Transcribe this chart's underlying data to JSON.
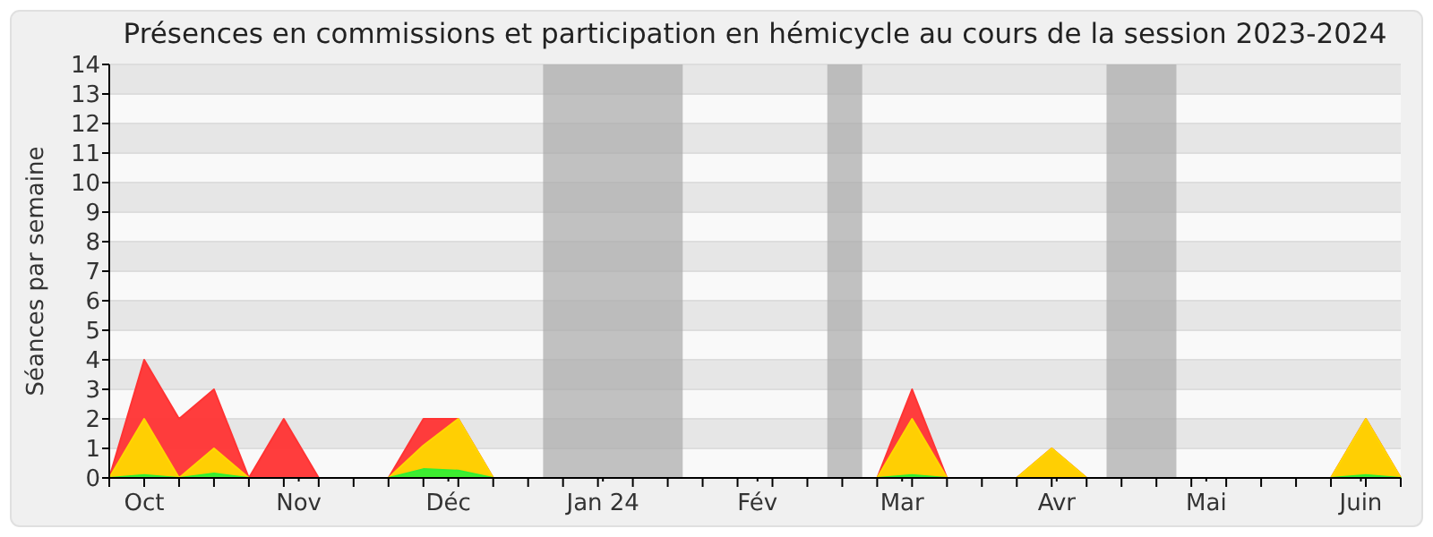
{
  "chart_data": {
    "type": "area",
    "title": "Présences en commissions et participation en hémicycle au cours de la session 2023-2024",
    "ylabel": "Séances par semaine",
    "x": [
      "2023-09-24",
      "2023-10-01",
      "2023-10-08",
      "2023-10-15",
      "2023-10-22",
      "2023-10-29",
      "2023-11-05",
      "2023-11-12",
      "2023-11-19",
      "2023-11-26",
      "2023-12-03",
      "2023-12-10",
      "2023-12-17",
      "2023-12-24",
      "2023-12-31",
      "2024-01-07",
      "2024-01-14",
      "2024-01-21",
      "2024-01-28",
      "2024-02-04",
      "2024-02-11",
      "2024-02-18",
      "2024-02-25",
      "2024-03-03",
      "2024-03-10",
      "2024-03-17",
      "2024-03-24",
      "2024-03-31",
      "2024-04-07",
      "2024-04-14",
      "2024-04-21",
      "2024-04-28",
      "2024-05-05",
      "2024-05-12",
      "2024-05-19",
      "2024-05-26",
      "2024-06-02",
      "2024-06-09"
    ],
    "series": [
      {
        "color": "#ff3333",
        "values": [
          0,
          4,
          2,
          3,
          0,
          2,
          0,
          0,
          0,
          2,
          2,
          0,
          0,
          0,
          0,
          0,
          0,
          0,
          0,
          0,
          0,
          0,
          0,
          3,
          0,
          0,
          0,
          1,
          0,
          0,
          0,
          0,
          0,
          0,
          0,
          0,
          2,
          0
        ]
      },
      {
        "color": "#ffd700",
        "values": [
          0,
          2,
          0,
          1,
          0,
          0,
          0,
          0,
          0,
          1.1,
          2,
          0,
          0,
          0,
          0,
          0,
          0,
          0,
          0,
          0,
          0,
          0,
          0,
          2,
          0,
          0,
          0,
          1,
          0,
          0,
          0,
          0,
          0,
          0,
          0,
          0,
          2,
          0
        ]
      },
      {
        "color": "#33ee33",
        "values": [
          0,
          0.1,
          0,
          0.15,
          0,
          0,
          0,
          0,
          0,
          0.3,
          0.25,
          0,
          0,
          0,
          0,
          0,
          0,
          0,
          0,
          0,
          0,
          0,
          0,
          0.1,
          0,
          0,
          0,
          0,
          0,
          0,
          0,
          0,
          0,
          0,
          0,
          0,
          0.1,
          0
        ]
      }
    ],
    "xlim": [
      "2023-09-24",
      "2024-06-09"
    ],
    "xticks": [
      {
        "value": "2023-10-01",
        "label": "Oct"
      },
      {
        "value": "2023-11-01",
        "label": "Nov"
      },
      {
        "value": "2023-12-01",
        "label": "Déc"
      },
      {
        "value": "2024-01-01",
        "label": "Jan 24"
      },
      {
        "value": "2024-02-01",
        "label": "Fév"
      },
      {
        "value": "2024-03-01",
        "label": "Mar"
      },
      {
        "value": "2024-04-01",
        "label": "Avr"
      },
      {
        "value": "2024-05-01",
        "label": "Mai"
      },
      {
        "value": "2024-06-01",
        "label": "Juin"
      }
    ],
    "ylim": [
      0,
      14
    ],
    "yticks": [
      0,
      1,
      2,
      3,
      4,
      5,
      6,
      7,
      8,
      9,
      10,
      11,
      12,
      13,
      14
    ],
    "grid": "y",
    "bands": [
      {
        "axis": "x",
        "from": "2023-12-20",
        "to": "2024-01-17",
        "color": "#aaaaaa"
      },
      {
        "axis": "x",
        "from": "2024-02-15",
        "to": "2024-02-22",
        "color": "#aaaaaa"
      },
      {
        "axis": "x",
        "from": "2024-04-11",
        "to": "2024-04-25",
        "color": "#aaaaaa"
      }
    ]
  }
}
